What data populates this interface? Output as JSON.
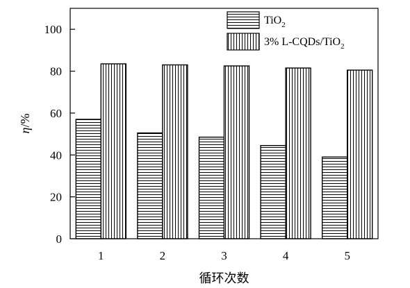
{
  "chart_data": {
    "type": "bar",
    "categories": [
      "1",
      "2",
      "3",
      "4",
      "5"
    ],
    "series": [
      {
        "name": "TiO2",
        "name_main": "TiO",
        "name_sub": "2",
        "values": [
          57,
          50.5,
          48.5,
          44.5,
          39
        ],
        "pattern": "horizontal-stripes"
      },
      {
        "name": "3% L-CQDs/TiO2",
        "name_main": "3% L-CQDs/TiO",
        "name_sub": "2",
        "values": [
          83.5,
          83,
          82.5,
          81.5,
          80.5
        ],
        "pattern": "vertical-stripes"
      }
    ],
    "xlabel": "循环次数",
    "ylabel_italic": "η",
    "ylabel_rest": "/%",
    "ylim": [
      0,
      110
    ],
    "yticks": [
      0,
      20,
      40,
      60,
      80,
      100
    ],
    "grid": false,
    "legend_position": "top-right"
  }
}
